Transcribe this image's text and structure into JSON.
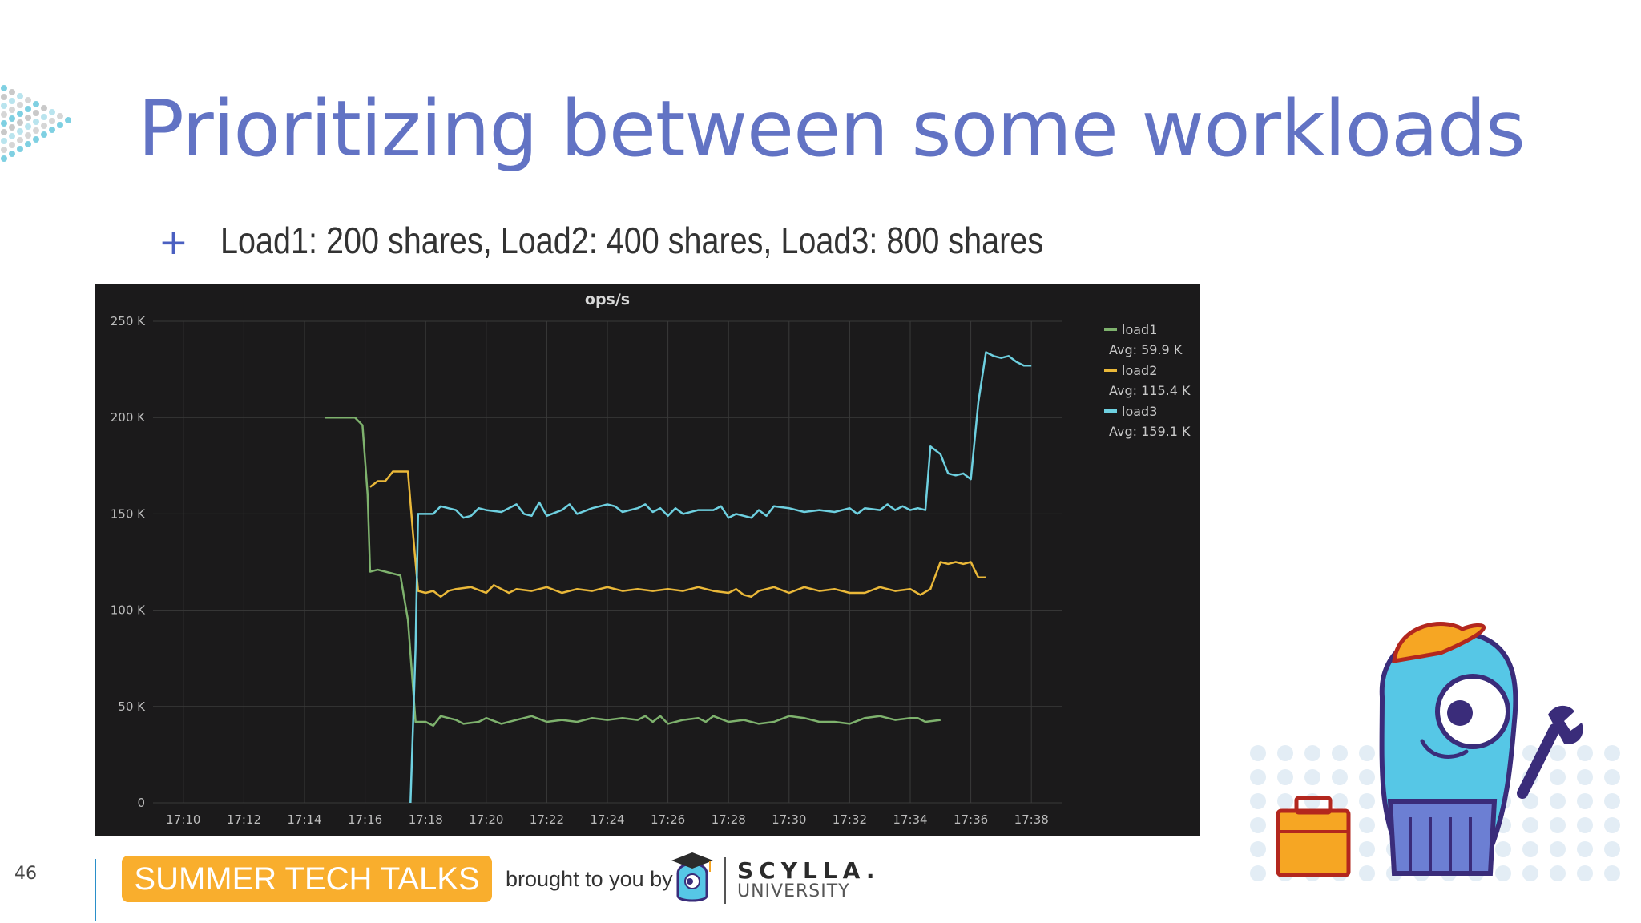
{
  "slide": {
    "title": "Prioritizing between some workloads",
    "bullet_marker": "+",
    "bullet": "Load1: 200 shares, Load2: 400 shares, Load3: 800 shares",
    "page_number": "46"
  },
  "footer": {
    "badge": "SUMMER TECH TALKS",
    "brought_by": "brought to you by",
    "brand": "SCYLLA.",
    "brand_sub": "UNIVERSITY"
  },
  "colors": {
    "title": "#6273c4",
    "panel": "#1b1a1b",
    "badge": "#f9ae2d",
    "load1": "#7eb26d",
    "load2": "#eab839",
    "load3": "#6ed0e0"
  },
  "icons": [
    "mascot-icon",
    "wrench-icon",
    "toolbox-icon",
    "graduation-mascot-icon"
  ],
  "chart_data": {
    "type": "line",
    "title": "ops/s",
    "xlabel": "",
    "ylabel": "",
    "ylim": [
      0,
      250000
    ],
    "yticks": [
      0,
      50000,
      100000,
      150000,
      200000,
      250000
    ],
    "ytick_labels": [
      "0",
      "50 K",
      "100 K",
      "150 K",
      "200 K",
      "250 K"
    ],
    "xlim": [
      "17:09:00",
      "17:39:00"
    ],
    "xticks": [
      "17:10",
      "17:12",
      "17:14",
      "17:16",
      "17:18",
      "17:20",
      "17:22",
      "17:24",
      "17:26",
      "17:28",
      "17:30",
      "17:32",
      "17:34",
      "17:36",
      "17:38"
    ],
    "grid": true,
    "legend_position": "right",
    "series": [
      {
        "name": "load1",
        "avg": "Avg: 59.9 K",
        "points": [
          [
            "17:14:40",
            200000
          ],
          [
            "17:15:40",
            200000
          ],
          [
            "17:15:55",
            196000
          ],
          [
            "17:16:05",
            160000
          ],
          [
            "17:16:10",
            120000
          ],
          [
            "17:16:25",
            121000
          ],
          [
            "17:16:40",
            120000
          ],
          [
            "17:17:10",
            118000
          ],
          [
            "17:17:25",
            95000
          ],
          [
            "17:17:35",
            60000
          ],
          [
            "17:17:40",
            42000
          ],
          [
            "17:18:00",
            42000
          ],
          [
            "17:18:15",
            40000
          ],
          [
            "17:18:30",
            45000
          ],
          [
            "17:19:00",
            43000
          ],
          [
            "17:19:15",
            41000
          ],
          [
            "17:19:45",
            42000
          ],
          [
            "17:20:00",
            44000
          ],
          [
            "17:20:30",
            41000
          ],
          [
            "17:21:00",
            43000
          ],
          [
            "17:21:30",
            45000
          ],
          [
            "17:22:00",
            42000
          ],
          [
            "17:22:30",
            43000
          ],
          [
            "17:23:00",
            42000
          ],
          [
            "17:23:30",
            44000
          ],
          [
            "17:24:00",
            43000
          ],
          [
            "17:24:30",
            44000
          ],
          [
            "17:25:00",
            43000
          ],
          [
            "17:25:15",
            45000
          ],
          [
            "17:25:30",
            42000
          ],
          [
            "17:25:45",
            45000
          ],
          [
            "17:26:00",
            41000
          ],
          [
            "17:26:30",
            43000
          ],
          [
            "17:27:00",
            44000
          ],
          [
            "17:27:15",
            42000
          ],
          [
            "17:27:30",
            45000
          ],
          [
            "17:28:00",
            42000
          ],
          [
            "17:28:30",
            43000
          ],
          [
            "17:29:00",
            41000
          ],
          [
            "17:29:30",
            42000
          ],
          [
            "17:30:00",
            45000
          ],
          [
            "17:30:30",
            44000
          ],
          [
            "17:31:00",
            42000
          ],
          [
            "17:31:30",
            42000
          ],
          [
            "17:32:00",
            41000
          ],
          [
            "17:32:30",
            44000
          ],
          [
            "17:33:00",
            45000
          ],
          [
            "17:33:30",
            43000
          ],
          [
            "17:34:00",
            44000
          ],
          [
            "17:34:15",
            44000
          ],
          [
            "17:34:30",
            42000
          ],
          [
            "17:35:00",
            43000
          ]
        ]
      },
      {
        "name": "load2",
        "avg": "Avg: 115.4 K",
        "points": [
          [
            "17:16:10",
            164000
          ],
          [
            "17:16:25",
            167000
          ],
          [
            "17:16:40",
            167000
          ],
          [
            "17:16:55",
            172000
          ],
          [
            "17:17:25",
            172000
          ],
          [
            "17:17:35",
            140000
          ],
          [
            "17:17:45",
            110000
          ],
          [
            "17:18:00",
            109000
          ],
          [
            "17:18:15",
            110000
          ],
          [
            "17:18:30",
            107000
          ],
          [
            "17:18:45",
            110000
          ],
          [
            "17:19:00",
            111000
          ],
          [
            "17:19:30",
            112000
          ],
          [
            "17:20:00",
            109000
          ],
          [
            "17:20:15",
            113000
          ],
          [
            "17:20:45",
            109000
          ],
          [
            "17:21:00",
            111000
          ],
          [
            "17:21:30",
            110000
          ],
          [
            "17:22:00",
            112000
          ],
          [
            "17:22:30",
            109000
          ],
          [
            "17:23:00",
            111000
          ],
          [
            "17:23:30",
            110000
          ],
          [
            "17:24:00",
            112000
          ],
          [
            "17:24:30",
            110000
          ],
          [
            "17:25:00",
            111000
          ],
          [
            "17:25:30",
            110000
          ],
          [
            "17:26:00",
            111000
          ],
          [
            "17:26:30",
            110000
          ],
          [
            "17:27:00",
            112000
          ],
          [
            "17:27:30",
            110000
          ],
          [
            "17:28:00",
            109000
          ],
          [
            "17:28:15",
            111000
          ],
          [
            "17:28:30",
            108000
          ],
          [
            "17:28:45",
            107000
          ],
          [
            "17:29:00",
            110000
          ],
          [
            "17:29:30",
            112000
          ],
          [
            "17:30:00",
            109000
          ],
          [
            "17:30:30",
            112000
          ],
          [
            "17:31:00",
            110000
          ],
          [
            "17:31:30",
            111000
          ],
          [
            "17:32:00",
            109000
          ],
          [
            "17:32:30",
            109000
          ],
          [
            "17:33:00",
            112000
          ],
          [
            "17:33:30",
            110000
          ],
          [
            "17:34:00",
            111000
          ],
          [
            "17:34:20",
            108000
          ],
          [
            "17:34:40",
            111000
          ],
          [
            "17:35:00",
            125000
          ],
          [
            "17:35:15",
            124000
          ],
          [
            "17:35:30",
            125000
          ],
          [
            "17:35:45",
            124000
          ],
          [
            "17:36:00",
            125000
          ],
          [
            "17:36:15",
            117000
          ],
          [
            "17:36:30",
            117000
          ]
        ]
      },
      {
        "name": "load3",
        "avg": "Avg: 159.1 K",
        "points": [
          [
            "17:17:30",
            0
          ],
          [
            "17:17:40",
            80000
          ],
          [
            "17:17:45",
            150000
          ],
          [
            "17:18:00",
            150000
          ],
          [
            "17:18:15",
            150000
          ],
          [
            "17:18:30",
            154000
          ],
          [
            "17:19:00",
            152000
          ],
          [
            "17:19:15",
            148000
          ],
          [
            "17:19:30",
            149000
          ],
          [
            "17:19:45",
            153000
          ],
          [
            "17:20:00",
            152000
          ],
          [
            "17:20:30",
            151000
          ],
          [
            "17:21:00",
            155000
          ],
          [
            "17:21:15",
            150000
          ],
          [
            "17:21:30",
            149000
          ],
          [
            "17:21:45",
            156000
          ],
          [
            "17:22:00",
            149000
          ],
          [
            "17:22:30",
            152000
          ],
          [
            "17:22:45",
            155000
          ],
          [
            "17:23:00",
            150000
          ],
          [
            "17:23:30",
            153000
          ],
          [
            "17:24:00",
            155000
          ],
          [
            "17:24:15",
            154000
          ],
          [
            "17:24:30",
            151000
          ],
          [
            "17:25:00",
            153000
          ],
          [
            "17:25:15",
            155000
          ],
          [
            "17:25:30",
            151000
          ],
          [
            "17:25:45",
            153000
          ],
          [
            "17:26:00",
            149000
          ],
          [
            "17:26:15",
            153000
          ],
          [
            "17:26:30",
            150000
          ],
          [
            "17:27:00",
            152000
          ],
          [
            "17:27:30",
            152000
          ],
          [
            "17:27:45",
            154000
          ],
          [
            "17:28:00",
            148000
          ],
          [
            "17:28:15",
            150000
          ],
          [
            "17:28:45",
            148000
          ],
          [
            "17:29:00",
            152000
          ],
          [
            "17:29:15",
            149000
          ],
          [
            "17:29:30",
            154000
          ],
          [
            "17:30:00",
            153000
          ],
          [
            "17:30:30",
            151000
          ],
          [
            "17:31:00",
            152000
          ],
          [
            "17:31:30",
            151000
          ],
          [
            "17:32:00",
            153000
          ],
          [
            "17:32:15",
            150000
          ],
          [
            "17:32:30",
            153000
          ],
          [
            "17:33:00",
            152000
          ],
          [
            "17:33:15",
            155000
          ],
          [
            "17:33:30",
            152000
          ],
          [
            "17:33:45",
            154000
          ],
          [
            "17:34:00",
            152000
          ],
          [
            "17:34:15",
            153000
          ],
          [
            "17:34:30",
            152000
          ],
          [
            "17:34:40",
            185000
          ],
          [
            "17:35:00",
            181000
          ],
          [
            "17:35:15",
            171000
          ],
          [
            "17:35:30",
            170000
          ],
          [
            "17:35:45",
            171000
          ],
          [
            "17:36:00",
            168000
          ],
          [
            "17:36:15",
            208000
          ],
          [
            "17:36:30",
            234000
          ],
          [
            "17:36:45",
            232000
          ],
          [
            "17:37:00",
            231000
          ],
          [
            "17:37:15",
            232000
          ],
          [
            "17:37:30",
            229000
          ],
          [
            "17:37:45",
            227000
          ],
          [
            "17:38:00",
            227000
          ]
        ]
      }
    ]
  }
}
